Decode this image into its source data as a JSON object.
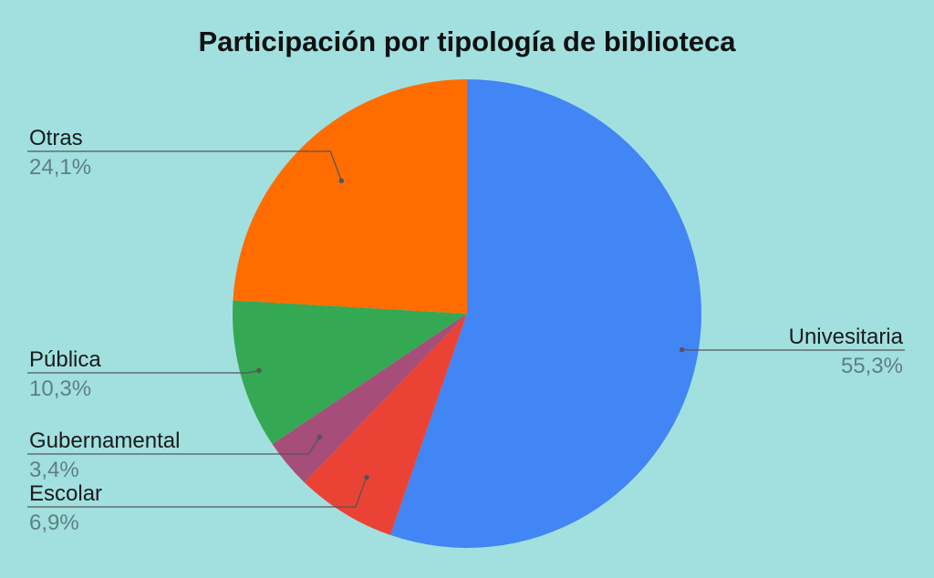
{
  "chart_data": {
    "type": "pie",
    "title": "Participación por tipología de biblioteca",
    "slices": [
      {
        "name": "Univesitaria",
        "label": "55,3%",
        "value": 55.3,
        "color": "#4285f4"
      },
      {
        "name": "Escolar",
        "label": "6,9%",
        "value": 6.9,
        "color": "#ea4335"
      },
      {
        "name": "Gubernamental",
        "label": "3,4%",
        "value": 3.4,
        "color": "#a64d79"
      },
      {
        "name": "Pública",
        "label": "10,3%",
        "value": 10.3,
        "color": "#34a853"
      },
      {
        "name": "Otras",
        "label": "24,1%",
        "value": 24.1,
        "color": "#ff6d01"
      }
    ],
    "start_angle": "12 o'clock",
    "direction": "clockwise",
    "legend": "none",
    "labels": "outside with leader lines"
  }
}
